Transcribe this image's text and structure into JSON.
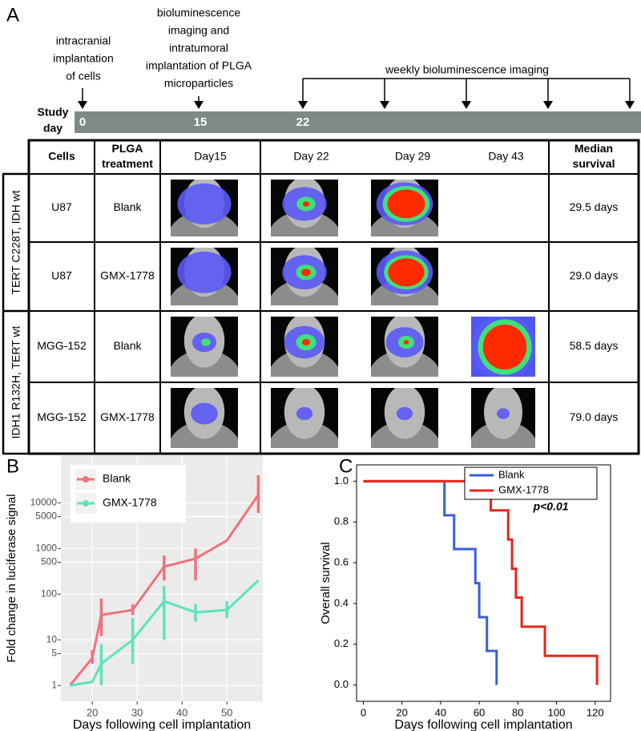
{
  "panel_a": {
    "label": "A",
    "timeline": {
      "label_lines": [
        "Study",
        "day"
      ],
      "days": [
        0,
        15,
        22
      ],
      "annotations": [
        {
          "lines": [
            "intracranial",
            "implantation",
            "of cells"
          ]
        },
        {
          "lines": [
            "bioluminescence",
            "imaging and",
            "intratumoral",
            "implantation of PLGA",
            "microparticles"
          ]
        },
        {
          "lines": [
            "weekly bioluminescence imaging"
          ]
        }
      ]
    },
    "table": {
      "headers": [
        [
          "Cells"
        ],
        [
          "PLGA",
          "treatment"
        ],
        [
          "Day15"
        ],
        [
          "Day 22"
        ],
        [
          "Day 29"
        ],
        [
          "Day 43"
        ],
        [
          "Median",
          "survival"
        ]
      ],
      "groups": [
        "TERT C228T, IDH wt",
        "IDH1 R132H, TERT wt"
      ],
      "rows": [
        [
          "U87",
          "Blank",
          "29.5 days"
        ],
        [
          "U87",
          "GMX-1778",
          "29.0 days"
        ],
        [
          "MGG-152",
          "Blank",
          "58.5 days"
        ],
        [
          "MGG-152",
          "GMX-1778",
          "79.0 days"
        ]
      ]
    }
  },
  "chart_data": [
    {
      "type": "line",
      "label": "B",
      "xlabel": "Days following cell implantation",
      "ylabel": "Fold change in luciferase signal",
      "x": [
        15,
        20,
        22,
        29,
        36,
        43,
        50,
        57
      ],
      "xlim": [
        13,
        58
      ],
      "xticks": [
        20,
        30,
        40,
        50
      ],
      "ylim": [
        0.45,
        110000
      ],
      "yticks": [
        1,
        5,
        10,
        100,
        500,
        1000,
        5000,
        10000
      ],
      "yscale": "log",
      "grid": true,
      "legend": "upper left",
      "series": [
        {
          "name": "Blank",
          "color": "#f0727a",
          "values": [
            1,
            4,
            35,
            45,
            400,
            600,
            1500,
            15000
          ],
          "lower": [
            null,
            3,
            12,
            35,
            200,
            200,
            null,
            6000
          ],
          "upper": [
            null,
            6,
            80,
            60,
            700,
            1000,
            null,
            40000
          ]
        },
        {
          "name": "GMX-1778",
          "color": "#5de3bf",
          "values": [
            1,
            1.2,
            3,
            10,
            70,
            40,
            45,
            200
          ],
          "lower": [
            null,
            null,
            1,
            3,
            10,
            25,
            30,
            null
          ],
          "upper": [
            null,
            null,
            8,
            30,
            150,
            60,
            70,
            null
          ]
        }
      ]
    },
    {
      "type": "step",
      "label": "C",
      "xlabel": "Days following cell implantation",
      "ylabel": "Overall survival",
      "xlim": [
        -3.5,
        128
      ],
      "xticks": [
        0,
        20,
        40,
        60,
        80,
        100,
        120
      ],
      "ylim": [
        -0.08,
        1.08
      ],
      "yticks": [
        {
          "value": 0,
          "label": "0.0"
        },
        0.2,
        0.4,
        0.6,
        0.8,
        {
          "value": 1,
          "label": "1.0"
        }
      ],
      "legend": "upper right",
      "annotation": "p<0.01",
      "series": [
        {
          "name": "Blank",
          "color": "#3a5fd9",
          "x": [
            0,
            42,
            47,
            58,
            60,
            64,
            69
          ],
          "values": [
            1,
            0.833,
            0.667,
            0.5,
            0.333,
            0.167,
            0
          ]
        },
        {
          "name": "GMX-1778",
          "color": "#e8261a",
          "x": [
            0,
            66,
            75,
            77,
            79,
            82,
            94,
            121
          ],
          "values": [
            1,
            0.857,
            0.714,
            0.571,
            0.429,
            0.286,
            0.143,
            0
          ]
        }
      ]
    }
  ]
}
